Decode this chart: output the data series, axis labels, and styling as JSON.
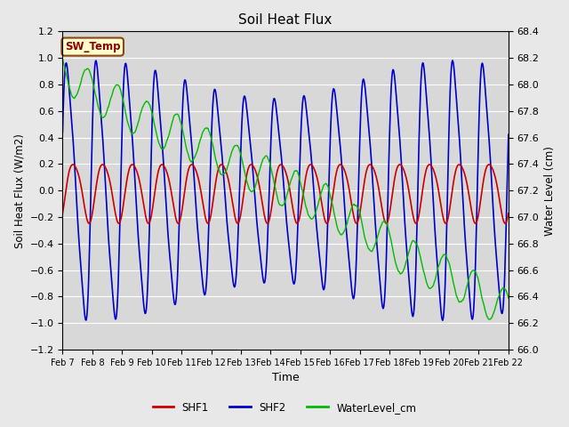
{
  "title": "Soil Heat Flux",
  "ylabel_left": "Soil Heat Flux (W/m2)",
  "ylabel_right": "Water Level (cm)",
  "xlabel": "Time",
  "ylim_left": [
    -1.2,
    1.2
  ],
  "ylim_right": [
    66.0,
    68.4
  ],
  "bg_color": "#e8e8e8",
  "plot_bg_color": "#d8d8d8",
  "grid_color": "#ffffff",
  "shf1_color": "#cc0000",
  "shf2_color": "#0000cc",
  "water_color": "#00bb00",
  "legend_box_facecolor": "#ffffcc",
  "legend_box_edgecolor": "#8b4513",
  "sw_temp_color": "#8b0000",
  "xtick_labels": [
    "Feb 7",
    "Feb 8",
    "Feb 9",
    "Feb 10",
    "Feb 11",
    "Feb 12",
    "Feb 13",
    "Feb 14",
    "Feb 15",
    "Feb 16",
    "Feb 17",
    "Feb 18",
    "Feb 19",
    "Feb 20",
    "Feb 21",
    "Feb 22"
  ],
  "yticks_left": [
    -1.2,
    -1.0,
    -0.8,
    -0.6,
    -0.4,
    -0.2,
    0.0,
    0.2,
    0.4,
    0.6,
    0.8,
    1.0,
    1.2
  ],
  "yticks_right": [
    66.0,
    66.2,
    66.4,
    66.6,
    66.8,
    67.0,
    67.2,
    67.4,
    67.6,
    67.8,
    68.0,
    68.2,
    68.4
  ]
}
